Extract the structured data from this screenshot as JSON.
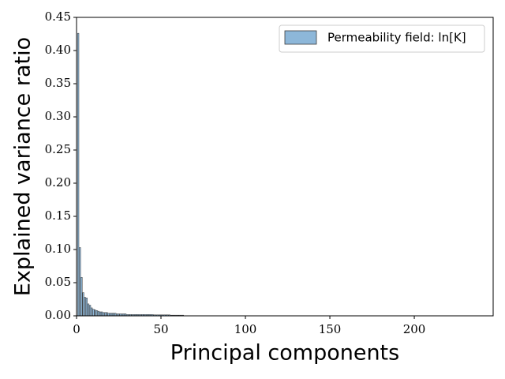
{
  "chart_data": {
    "type": "bar",
    "xlabel": "Principal components",
    "ylabel": "Explained variance ratio",
    "legend": "upper right",
    "series": [
      {
        "name": "Permeability field: ln[K]",
        "color": "#8db7d9",
        "edgecolor": "#3a3a3a",
        "x": [
          1,
          2,
          3,
          4,
          5,
          6,
          7,
          8,
          9,
          10,
          11,
          12,
          13,
          14,
          15,
          16,
          17,
          18,
          19,
          20,
          21,
          22,
          23,
          24,
          25,
          26,
          27,
          28,
          29,
          30,
          31,
          32,
          33,
          34,
          35,
          36,
          37,
          38,
          39,
          40,
          41,
          42,
          43,
          44,
          45,
          46,
          47,
          48,
          49,
          50,
          51,
          52,
          53,
          54,
          55,
          56,
          57,
          58,
          59,
          60,
          61,
          62,
          63,
          64,
          65,
          66,
          67,
          68,
          69,
          70,
          71,
          72,
          73,
          74,
          75,
          76,
          77,
          78,
          79,
          80,
          81,
          82,
          83,
          84,
          85,
          86,
          87,
          88,
          89,
          90,
          91,
          92,
          93,
          94,
          95,
          96,
          97,
          98,
          99,
          100,
          101,
          102,
          103,
          104,
          105,
          106,
          107,
          108,
          109,
          110,
          111,
          112,
          113,
          114,
          115,
          116,
          117,
          118,
          119,
          120,
          121,
          122,
          123,
          124,
          125,
          126,
          127,
          128,
          129,
          130,
          131,
          132,
          133,
          134,
          135,
          136,
          137,
          138,
          139,
          140,
          141,
          142,
          143,
          144,
          145,
          146,
          147,
          148,
          149,
          150,
          151,
          152,
          153,
          154,
          155,
          156,
          157,
          158,
          159,
          160,
          161,
          162,
          163,
          164,
          165,
          166,
          167,
          168,
          169,
          170,
          171,
          172,
          173,
          174,
          175,
          176,
          177,
          178,
          179,
          180,
          181,
          182,
          183,
          184,
          185,
          186,
          187,
          188,
          189,
          190,
          191,
          192,
          193,
          194,
          195,
          196,
          197,
          198,
          199,
          200,
          201,
          202,
          203,
          204,
          205,
          206,
          207,
          208,
          209,
          210,
          211,
          212,
          213,
          214,
          215,
          216,
          217,
          218,
          219,
          220,
          221,
          222,
          223,
          224,
          225,
          226,
          227,
          228,
          229,
          230,
          231,
          232,
          233,
          234,
          235,
          236,
          237,
          238,
          239,
          240,
          241,
          242,
          243,
          244,
          245
        ],
        "values": [
          0.426,
          0.103,
          0.058,
          0.035,
          0.028,
          0.027,
          0.018,
          0.016,
          0.012,
          0.01,
          0.009,
          0.008,
          0.007,
          0.006,
          0.006,
          0.005,
          0.005,
          0.005,
          0.004,
          0.004,
          0.004,
          0.004,
          0.004,
          0.003,
          0.003,
          0.003,
          0.003,
          0.003,
          0.003,
          0.002,
          0.002,
          0.002,
          0.002,
          0.002,
          0.002,
          0.002,
          0.002,
          0.002,
          0.002,
          0.002,
          0.002,
          0.002,
          0.002,
          0.002,
          0.002,
          0.0015,
          0.0015,
          0.0015,
          0.0015,
          0.0015,
          0.0015,
          0.0015,
          0.0015,
          0.0015,
          0.0015,
          0.001,
          0.001,
          0.001,
          0.001,
          0.001,
          0.001,
          0.001,
          0.001,
          0.0002,
          0.0002,
          0.0002,
          0.0002,
          0.0002,
          0.0002,
          0.0002,
          0.0002,
          0.0002,
          0.0002,
          0.0002,
          0.0002,
          0.0002,
          0.0002,
          0.0002,
          0.0002,
          0.0002,
          0.0002,
          0.0002,
          0.0002,
          0.0002,
          0.0002,
          0.0002,
          0.0002,
          0.0002,
          0.0002,
          0.0002,
          0.0002,
          0.0002,
          0.0002,
          0.0002,
          0.0002,
          0.0002,
          0.0002,
          0.0002,
          0.0002,
          0.0002,
          0.0002,
          0.0002,
          0.0002,
          0.0002,
          0.0002,
          0.0002,
          0.0002,
          0.0002,
          0.0002,
          0.0002,
          0.0002,
          0.0002,
          0.0002,
          0.0002,
          0.0002,
          0.0002,
          0.0002,
          0.0002,
          0.0002,
          0.0002,
          0.0002,
          0.0002,
          0.0002,
          0.0002,
          0.0002,
          0.0002,
          0.0002,
          0.0002,
          0.0002,
          0.0002,
          0.0002,
          0.0002,
          0.0002,
          0.0002,
          0.0002,
          0.0002,
          0.0002,
          0.0002,
          0.0002,
          0.0002,
          0.0002,
          0.0002,
          0.0002,
          0.0002,
          0.0002,
          0.0002,
          0.0002,
          0.0002,
          0.0002,
          0.0002,
          0.0002,
          0.0002,
          0.0002,
          0.0002,
          0.0002,
          0.0002,
          0.0002,
          0.0002,
          0.0002,
          0.0002,
          0.0002,
          0.0002,
          0.0002,
          0.0002,
          0.0002,
          0.0002,
          0.0002,
          0.0002,
          0.0002,
          0.0002,
          0.0002,
          0.0002,
          0.0002,
          0.0002,
          0.0002,
          0.0002,
          0.0002,
          0.0002,
          0.0002,
          0.0002,
          0.0002,
          0.0002,
          0.0002,
          0.0002,
          0.0002,
          0.0002,
          0.0002,
          0.0002,
          0.0002,
          0.0002,
          0.0002,
          0.0002,
          0.0002,
          0.0002,
          0.0002,
          0.0002,
          0.0002,
          0.0002,
          0.0002,
          0.0002,
          0.0002,
          0.0002,
          0.0002,
          0.0002,
          0.0002,
          0.0002,
          0.0002,
          0.0002,
          0.0002,
          0.0002,
          0.0002,
          0.0002,
          0.0002,
          0.0002,
          0.0002,
          0.0002,
          0.0002,
          0.0002,
          0.0002,
          0.0002,
          0.0002,
          0.0002,
          0.0002,
          0.0002,
          0.0002,
          0.0002,
          0.0002,
          0.0002,
          0.0002,
          0.0002,
          0.0002,
          0.0002,
          0.0002,
          0.0002,
          0.0002,
          0.0002,
          0.0002,
          0.0002,
          0.0002,
          0.0002,
          0.0002,
          0.0002,
          0.0002,
          0.0002,
          0.0002
        ]
      }
    ],
    "xlim": [
      0,
      246.7
    ],
    "xticks": [
      0,
      50,
      100,
      150,
      200
    ],
    "ylim": [
      0,
      0.45
    ],
    "yticks": [
      {
        "value": 0,
        "label": "0.00"
      },
      {
        "value": 0.05,
        "label": "0.05"
      },
      {
        "value": 0.1,
        "label": "0.10"
      },
      {
        "value": 0.15,
        "label": "0.15"
      },
      {
        "value": 0.2,
        "label": "0.20"
      },
      {
        "value": 0.25,
        "label": "0.25"
      },
      {
        "value": 0.3,
        "label": "0.30"
      },
      {
        "value": 0.35,
        "label": "0.35"
      },
      {
        "value": 0.4,
        "label": "0.40"
      },
      {
        "value": 0.45,
        "label": "0.45"
      }
    ]
  }
}
